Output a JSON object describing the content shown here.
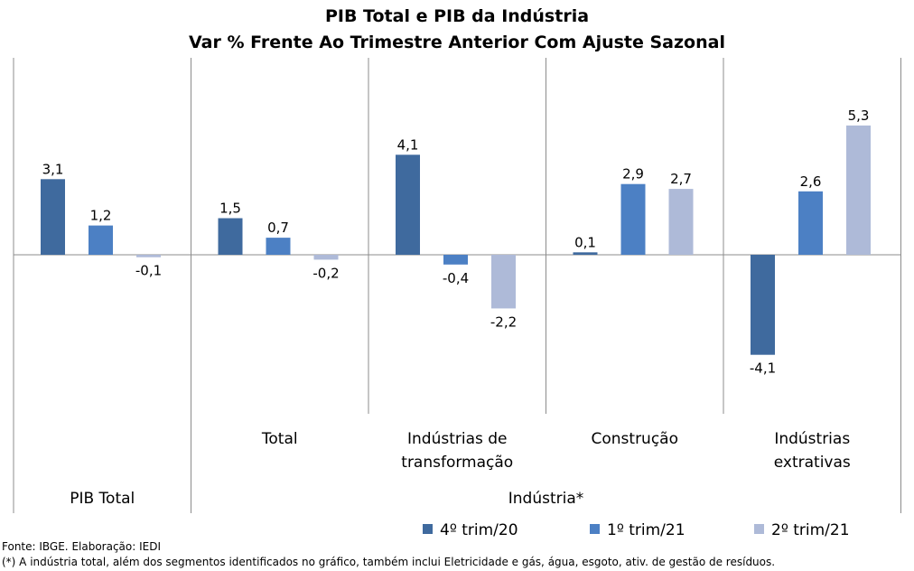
{
  "chart_data": {
    "type": "bar",
    "title": "PIB Total e PIB da Indústria",
    "subtitle": "Var % Frente Ao Trimestre Anterior Com Ajuste Sazonal",
    "categories": [
      "PIB Total",
      "Total",
      "Indústrias de transformação",
      "Construção",
      "Indústrias extrativas"
    ],
    "category_label_lines": [
      [],
      [
        "Total"
      ],
      [
        "Indústrias de",
        "transformação"
      ],
      [
        "Construção"
      ],
      [
        "Indústrias",
        "extrativas"
      ]
    ],
    "groups": [
      {
        "label": "PIB Total",
        "span": 1
      },
      {
        "label": "Indústria*",
        "span": 4
      }
    ],
    "series": [
      {
        "name": "4º trim/20",
        "color": "#3F6A9E",
        "values": [
          3.1,
          1.5,
          4.1,
          0.1,
          -4.1
        ]
      },
      {
        "name": "1º trim/21",
        "color": "#4C80C4",
        "values": [
          1.2,
          0.7,
          -0.4,
          2.9,
          2.6
        ]
      },
      {
        "name": "2º trim/21",
        "color": "#AEBAD8",
        "values": [
          -0.1,
          -0.2,
          -2.2,
          2.7,
          5.3
        ]
      }
    ],
    "data_labels": [
      [
        "3,1",
        "1,5",
        "4,1",
        "0,1",
        "-4,1"
      ],
      [
        "1,2",
        "0,7",
        "-0,4",
        "2,9",
        "2,6"
      ],
      [
        "-0,1",
        "-0,2",
        "-2,2",
        "2,7",
        "5,3"
      ]
    ],
    "ylim": [
      -5.0,
      6.5
    ],
    "grid": false,
    "legend_position": "bottom"
  },
  "footer": {
    "source": "Fonte: IBGE. Elaboração: IEDI",
    "note": "(*) A indústria total, além dos segmentos identificados no gráfico, também inclui Eletricidade e gás, água, esgoto, ativ. de gestão de resíduos."
  }
}
